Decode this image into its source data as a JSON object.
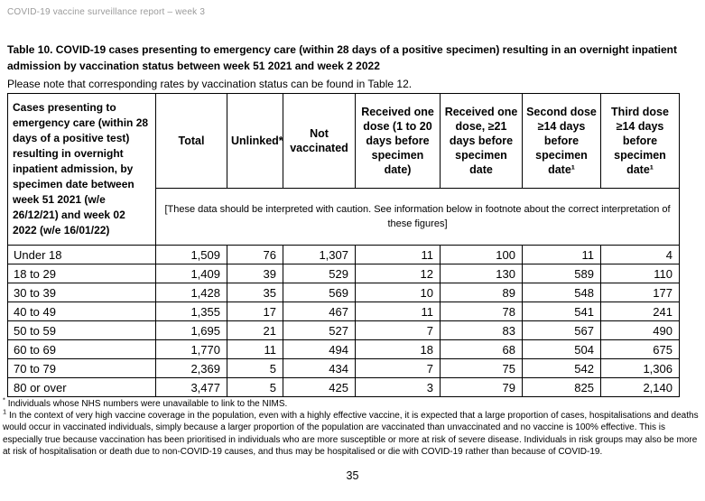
{
  "page": {
    "header": "COVID-19 vaccine surveillance report – week 3",
    "title": "Table 10. COVID-19 cases presenting to emergency care (within 28 days of a positive specimen) resulting in an overnight inpatient admission by vaccination status between week 51 2021 and week 2 2022",
    "note": "Please note that corresponding rates by vaccination status can be found in Table 12.",
    "page_number": "35"
  },
  "colors": {
    "muted_header_text": "#9a9a9a",
    "table_border": "#000000",
    "page_background": "#ffffff"
  },
  "table": {
    "row_header": "Cases presenting to emergency care (within 28 days of a positive test) resulting in overnight inpatient admission, by specimen date between week 51 2021 (w/e 26/12/21) and week 02 2022 (w/e 16/01/22)",
    "columns": [
      "Total",
      "Unlinked*",
      "Not vaccinated",
      "Received one dose (1 to 20 days before specimen date)",
      "Received one dose, ≥21 days before specimen date",
      "Second dose ≥14 days before specimen date¹",
      "Third dose ≥14 days before specimen date¹"
    ],
    "caution": "[These data should be interpreted with caution. See information below in footnote about the correct interpretation of these figures]",
    "rows": [
      {
        "label": "Under 18",
        "values": [
          "1,509",
          "76",
          "1,307",
          "11",
          "100",
          "11",
          "4"
        ]
      },
      {
        "label": "18 to 29",
        "values": [
          "1,409",
          "39",
          "529",
          "12",
          "130",
          "589",
          "110"
        ]
      },
      {
        "label": "30 to 39",
        "values": [
          "1,428",
          "35",
          "569",
          "10",
          "89",
          "548",
          "177"
        ]
      },
      {
        "label": "40 to 49",
        "values": [
          "1,355",
          "17",
          "467",
          "11",
          "78",
          "541",
          "241"
        ]
      },
      {
        "label": "50 to 59",
        "values": [
          "1,695",
          "21",
          "527",
          "7",
          "83",
          "567",
          "490"
        ]
      },
      {
        "label": "60 to 69",
        "values": [
          "1,770",
          "11",
          "494",
          "18",
          "68",
          "504",
          "675"
        ]
      },
      {
        "label": "70 to 79",
        "values": [
          "2,369",
          "5",
          "434",
          "7",
          "75",
          "542",
          "1,306"
        ]
      },
      {
        "label": "80 or over",
        "values": [
          "3,477",
          "5",
          "425",
          "3",
          "79",
          "825",
          "2,140"
        ]
      }
    ],
    "footnotes": [
      {
        "marker": "*",
        "text": "Individuals whose NHS numbers were unavailable to link to the NIMS."
      },
      {
        "marker": "1",
        "text": "In the context of very high vaccine coverage in the population, even with a highly effective vaccine, it is expected that a large proportion of cases, hospitalisations and deaths would occur in vaccinated individuals, simply because a larger proportion of the population are vaccinated than unvaccinated and no vaccine is 100% effective. This is especially true because vaccination has been prioritised in individuals who are more susceptible or more at risk of severe disease. Individuals in risk groups may also be more at risk of hospitalisation or death due to non-COVID-19 causes, and thus may be hospitalised or die with COVID-19 rather than because of COVID-19."
      }
    ]
  }
}
